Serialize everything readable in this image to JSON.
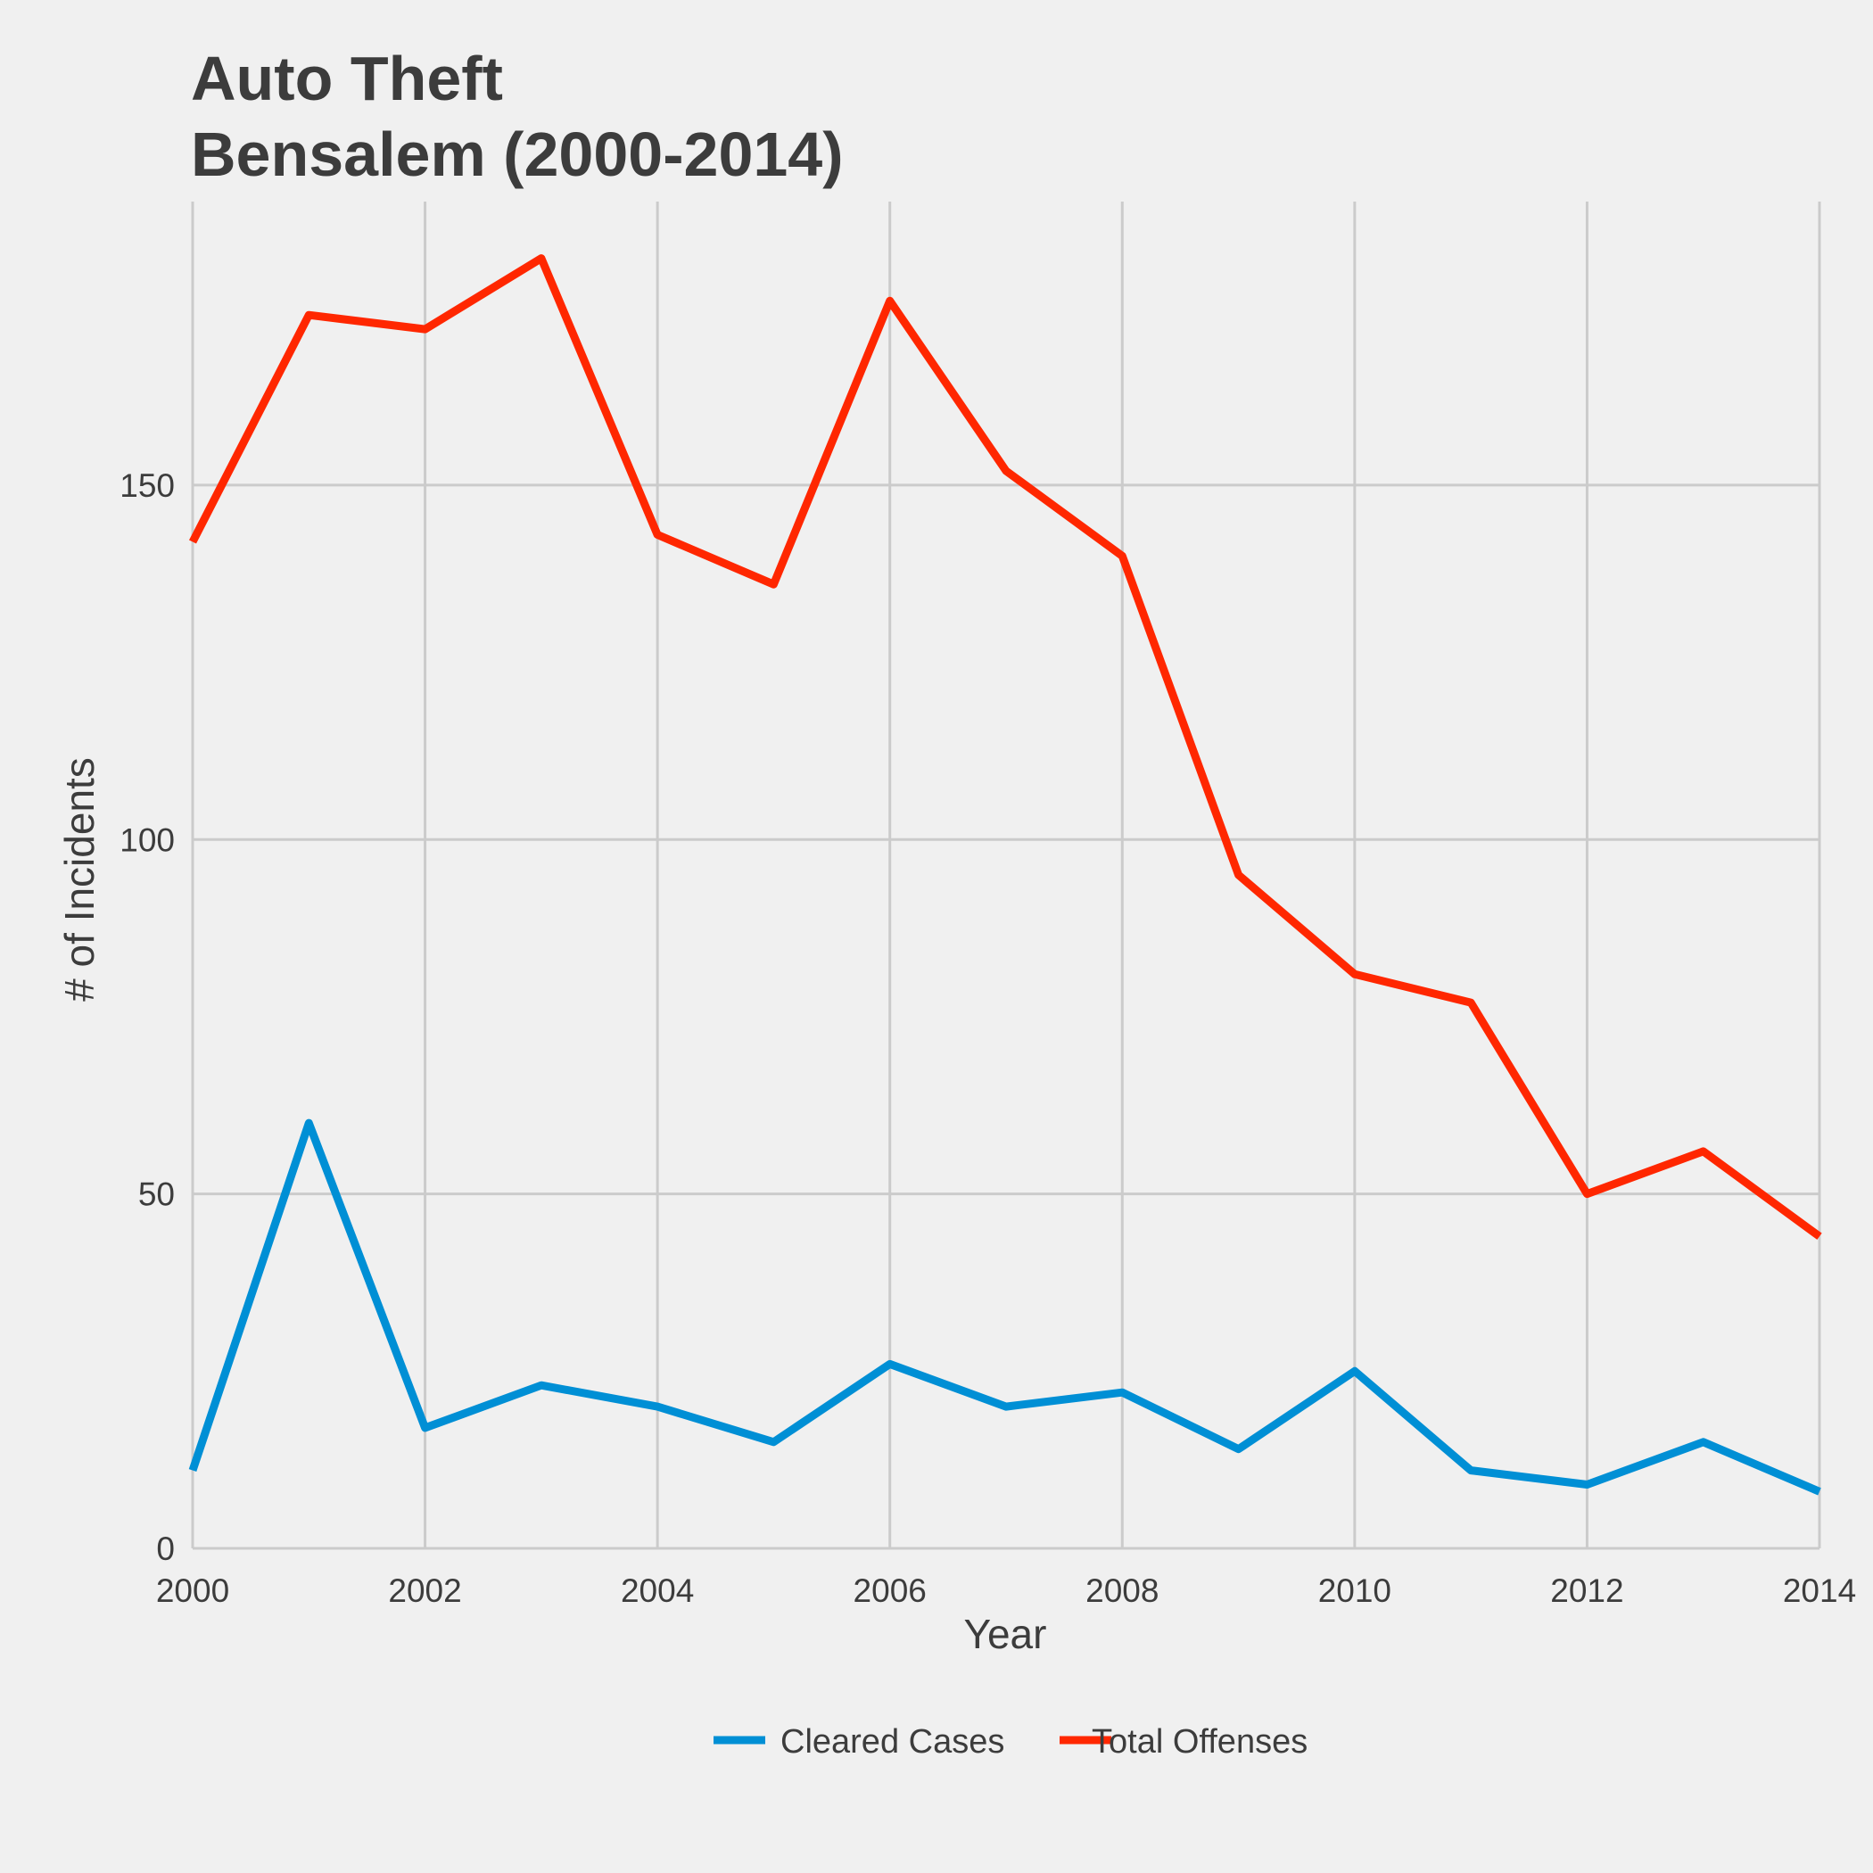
{
  "chart_data": {
    "type": "line",
    "title": "Auto Theft",
    "subtitle": "Bensalem (2000-2014)",
    "xlabel": "Year",
    "ylabel": "# of Incidents",
    "xlim": [
      2000,
      2014
    ],
    "ylim": [
      0,
      190
    ],
    "x_ticks": [
      "2000",
      "2002",
      "2004",
      "2006",
      "2008",
      "2010",
      "2012",
      "2014"
    ],
    "y_ticks": [
      "0",
      "50",
      "100",
      "150"
    ],
    "grid": true,
    "legend_position": "bottom",
    "x": [
      2000,
      2001,
      2002,
      2003,
      2004,
      2005,
      2006,
      2007,
      2008,
      2009,
      2010,
      2011,
      2012,
      2013,
      2014
    ],
    "series": [
      {
        "name": "Cleared Cases",
        "color": "#008fd5",
        "values": [
          11,
          60,
          17,
          23,
          20,
          15,
          26,
          20,
          22,
          14,
          25,
          11,
          9,
          15,
          8
        ]
      },
      {
        "name": "Total Offenses",
        "color": "#ff2700",
        "values": [
          142,
          174,
          172,
          182,
          143,
          136,
          176,
          152,
          140,
          95,
          81,
          77,
          50,
          56,
          44
        ]
      }
    ]
  }
}
